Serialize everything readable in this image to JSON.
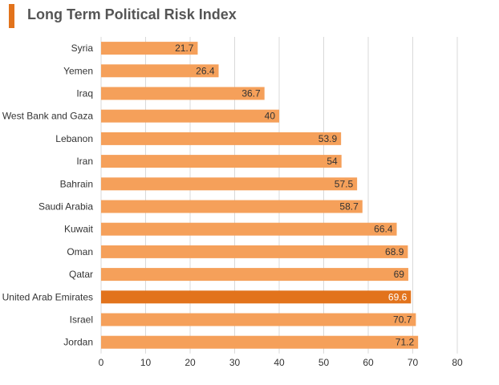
{
  "title": "Long Term Political Risk Index",
  "colors": {
    "bar": "#f5a05a",
    "highlight": "#e2731c",
    "accent": "#e2731c",
    "grid": "#d9d9d9",
    "label_text": "#333333",
    "highlight_label_text": "#ffffff"
  },
  "chart_data": {
    "type": "bar",
    "orientation": "horizontal",
    "title": "Long Term Political Risk Index",
    "xlabel": "",
    "ylabel": "",
    "xlim": [
      0,
      80
    ],
    "x_ticks": [
      0,
      10,
      20,
      30,
      40,
      50,
      60,
      70,
      80
    ],
    "grid": "vertical",
    "categories": [
      "Syria",
      "Yemen",
      "Iraq",
      "West Bank and Gaza",
      "Lebanon",
      "Iran",
      "Bahrain",
      "Saudi Arabia",
      "Kuwait",
      "Oman",
      "Qatar",
      "United Arab Emirates",
      "Israel",
      "Jordan"
    ],
    "values": [
      21.7,
      26.4,
      36.7,
      40,
      53.9,
      54,
      57.5,
      58.7,
      66.4,
      68.9,
      69,
      69.6,
      70.7,
      71.2
    ],
    "highlighted_category": "United Arab Emirates"
  }
}
